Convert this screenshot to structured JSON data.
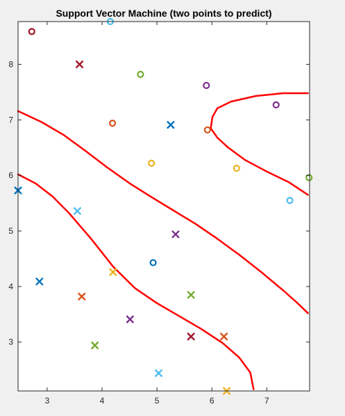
{
  "chart_data": {
    "type": "scatter",
    "title": "Support Vector Machine (two points to predict)",
    "xlabel": "",
    "ylabel": "",
    "xlim": [
      2.47,
      7.78
    ],
    "ylim": [
      2.12,
      8.77
    ],
    "xticks": [
      3,
      4,
      5,
      6,
      7
    ],
    "yticks": [
      3,
      4,
      5,
      6,
      7,
      8
    ],
    "grid": false,
    "legend": false,
    "series": [
      {
        "marker": "o",
        "points": [
          {
            "x": 2.72,
            "y": 8.59,
            "color": "#a2142f"
          },
          {
            "x": 4.15,
            "y": 8.77,
            "color": "#4dbeee"
          },
          {
            "x": 4.7,
            "y": 7.82,
            "color": "#77ac30"
          },
          {
            "x": 5.9,
            "y": 7.62,
            "color": "#7e2f8e"
          },
          {
            "x": 7.17,
            "y": 7.27,
            "color": "#7e2f8e"
          },
          {
            "x": 4.19,
            "y": 6.94,
            "color": "#d95319"
          },
          {
            "x": 5.92,
            "y": 6.82,
            "color": "#d95319"
          },
          {
            "x": 4.9,
            "y": 6.22,
            "color": "#edb120"
          },
          {
            "x": 6.45,
            "y": 6.13,
            "color": "#edb120"
          },
          {
            "x": 7.77,
            "y": 5.96,
            "color": "#77ac30"
          },
          {
            "x": 7.42,
            "y": 5.55,
            "color": "#4dbeee"
          },
          {
            "x": 4.93,
            "y": 4.43,
            "color": "#0072bd"
          }
        ]
      },
      {
        "marker": "x",
        "points": [
          {
            "x": 3.59,
            "y": 8.0,
            "color": "#a2142f"
          },
          {
            "x": 5.25,
            "y": 6.91,
            "color": "#0072bd"
          },
          {
            "x": 2.47,
            "y": 5.73,
            "color": "#0072bd"
          },
          {
            "x": 3.55,
            "y": 5.36,
            "color": "#4dbeee"
          },
          {
            "x": 5.34,
            "y": 4.94,
            "color": "#7e2f8e"
          },
          {
            "x": 4.2,
            "y": 4.26,
            "color": "#edb120"
          },
          {
            "x": 2.86,
            "y": 4.09,
            "color": "#0072bd"
          },
          {
            "x": 3.63,
            "y": 3.82,
            "color": "#d95319"
          },
          {
            "x": 5.62,
            "y": 3.85,
            "color": "#77ac30"
          },
          {
            "x": 4.51,
            "y": 3.41,
            "color": "#7e2f8e"
          },
          {
            "x": 5.62,
            "y": 3.1,
            "color": "#a2142f"
          },
          {
            "x": 6.22,
            "y": 3.1,
            "color": "#d95319"
          },
          {
            "x": 3.87,
            "y": 2.94,
            "color": "#77ac30"
          },
          {
            "x": 5.03,
            "y": 2.44,
            "color": "#4dbeee"
          },
          {
            "x": 6.27,
            "y": 2.12,
            "color": "#edb120"
          }
        ]
      }
    ],
    "boundaries": {
      "color": "#ff0000",
      "curves": [
        [
          [
            2.47,
            7.16
          ],
          [
            2.9,
            6.96
          ],
          [
            3.3,
            6.73
          ],
          [
            3.7,
            6.44
          ],
          [
            4.1,
            6.14
          ],
          [
            4.5,
            5.86
          ],
          [
            4.9,
            5.61
          ],
          [
            5.3,
            5.37
          ],
          [
            5.7,
            5.13
          ],
          [
            6.1,
            4.86
          ],
          [
            6.5,
            4.57
          ],
          [
            6.9,
            4.26
          ],
          [
            7.3,
            3.93
          ],
          [
            7.55,
            3.71
          ],
          [
            7.75,
            3.52
          ]
        ],
        [
          [
            2.47,
            6.02
          ],
          [
            2.8,
            5.85
          ],
          [
            3.1,
            5.62
          ],
          [
            3.4,
            5.32
          ],
          [
            3.8,
            4.86
          ],
          [
            4.2,
            4.36
          ],
          [
            4.6,
            3.97
          ],
          [
            5.0,
            3.7
          ],
          [
            5.4,
            3.47
          ],
          [
            5.8,
            3.24
          ],
          [
            6.2,
            2.98
          ],
          [
            6.5,
            2.72
          ],
          [
            6.7,
            2.45
          ],
          [
            6.76,
            2.15
          ]
        ],
        [
          [
            7.75,
            5.65
          ],
          [
            7.4,
            5.88
          ],
          [
            7.0,
            6.07
          ],
          [
            6.6,
            6.28
          ],
          [
            6.3,
            6.5
          ],
          [
            6.1,
            6.68
          ],
          [
            5.98,
            6.85
          ],
          [
            6.01,
            7.05
          ],
          [
            6.1,
            7.21
          ],
          [
            6.35,
            7.33
          ],
          [
            6.8,
            7.43
          ],
          [
            7.3,
            7.48
          ],
          [
            7.75,
            7.48
          ]
        ]
      ]
    }
  },
  "colors": {
    "boundary": "#ff0000",
    "background": "#f0f0f0",
    "axes_background": "#ffffff"
  }
}
